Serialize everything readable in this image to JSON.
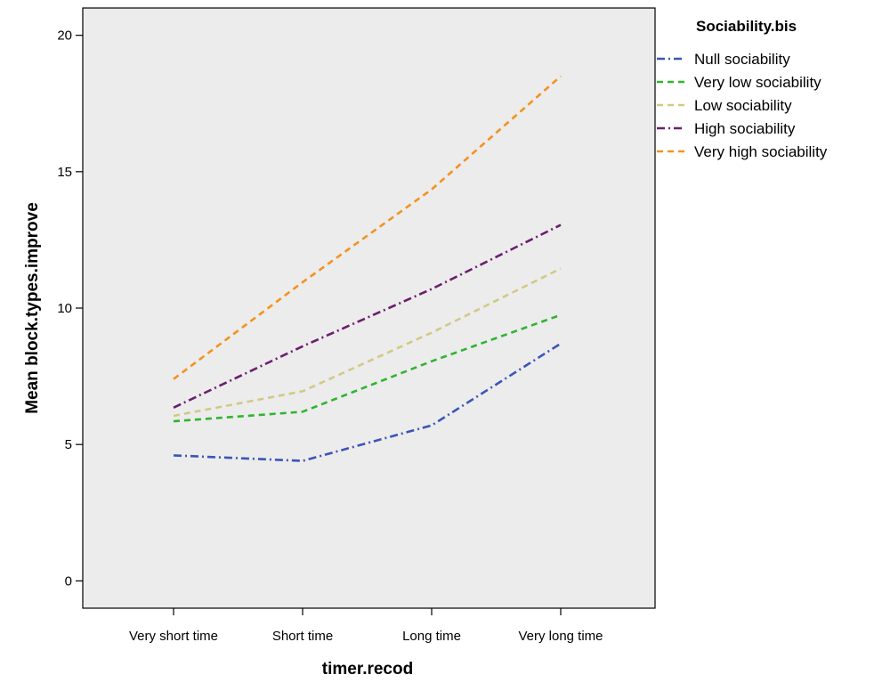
{
  "chart_data": {
    "type": "line",
    "xlabel": "timer.recod",
    "ylabel": "Mean block.types.improve",
    "categories": [
      "Very short time",
      "Short time",
      "Long time",
      "Very long time"
    ],
    "ylim": [
      -1,
      21
    ],
    "yticks": [
      0,
      5,
      10,
      15,
      20
    ],
    "grid": false,
    "legend": {
      "title": "Sociability.bis",
      "position": "right"
    },
    "series": [
      {
        "name": "Null sociability",
        "color": "#3b55b8",
        "dash": "dash-dot",
        "values": [
          4.6,
          4.4,
          5.7,
          8.7
        ]
      },
      {
        "name": "Very low sociability",
        "color": "#2fb52f",
        "dash": "dash",
        "values": [
          5.85,
          6.2,
          8.05,
          9.75
        ]
      },
      {
        "name": "Low sociability",
        "color": "#d2c987",
        "dash": "dash",
        "values": [
          6.05,
          6.95,
          9.1,
          11.45
        ]
      },
      {
        "name": "High sociability",
        "color": "#6b1f6e",
        "dash": "dash-dot",
        "values": [
          6.35,
          8.6,
          10.7,
          13.05
        ]
      },
      {
        "name": "Very high sociability",
        "color": "#f5921e",
        "dash": "dash",
        "values": [
          7.4,
          10.95,
          14.35,
          18.5
        ]
      }
    ]
  }
}
